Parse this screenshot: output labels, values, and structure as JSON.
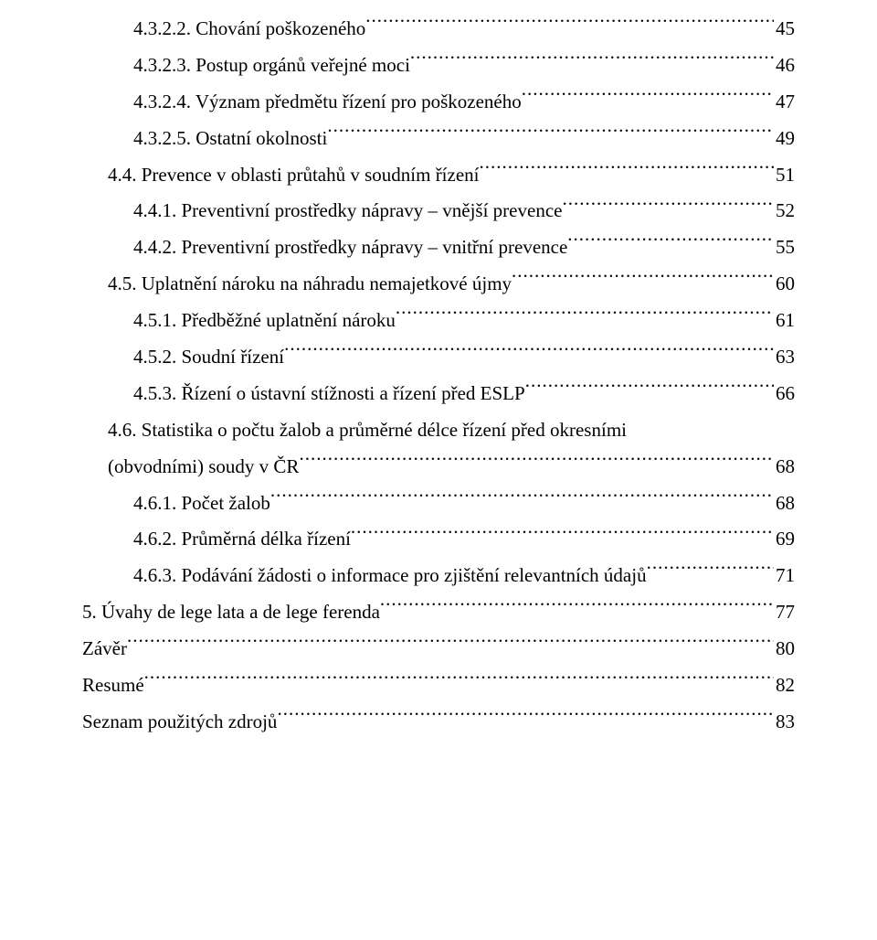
{
  "entries": [
    {
      "indent": 2,
      "label": "4.3.2.2. Chování poškozeného",
      "page": "45"
    },
    {
      "indent": 2,
      "label": "4.3.2.3. Postup orgánů veřejné moci",
      "page": "46"
    },
    {
      "indent": 2,
      "label": "4.3.2.4. Význam předmětu řízení pro poškozeného",
      "page": "47"
    },
    {
      "indent": 2,
      "label": "4.3.2.5. Ostatní okolnosti",
      "page": "49"
    },
    {
      "indent": 1,
      "label": "4.4. Prevence v oblasti průtahů v soudním řízení",
      "page": "51"
    },
    {
      "indent": 2,
      "label": "4.4.1. Preventivní prostředky nápravy – vnější prevence",
      "page": "52"
    },
    {
      "indent": 2,
      "label": "4.4.2. Preventivní prostředky nápravy – vnitřní prevence",
      "page": "55"
    },
    {
      "indent": 1,
      "label": "4.5. Uplatnění nároku na náhradu nemajetkové újmy",
      "page": "60"
    },
    {
      "indent": 2,
      "label": "4.5.1. Předběžné uplatnění nároku",
      "page": "61"
    },
    {
      "indent": 2,
      "label": "4.5.2. Soudní řízení",
      "page": "63"
    },
    {
      "indent": 2,
      "label": "4.5.3. Řízení o ústavní stížnosti a řízení před ESLP",
      "page": "66"
    },
    {
      "indent": 1,
      "wrap": true,
      "label_line1": "4.6. Statistika o počtu žalob a průměrné délce řízení před okresními",
      "label_line2": "(obvodními) soudy v ČR",
      "page": "68"
    },
    {
      "indent": 2,
      "label": "4.6.1. Počet žalob",
      "page": "68"
    },
    {
      "indent": 2,
      "label": "4.6.2. Průměrná délka řízení",
      "page": "69"
    },
    {
      "indent": 2,
      "label": "4.6.3. Podávání žádosti o informace pro zjištění relevantních údajů",
      "page": "71"
    },
    {
      "indent": 0,
      "label": "5. Úvahy de lege lata a de lege ferenda",
      "page": "77"
    },
    {
      "indent": 0,
      "label": "Závěr",
      "page": "80"
    },
    {
      "indent": 0,
      "label": "Resumé",
      "page": "82"
    },
    {
      "indent": 0,
      "label": "Seznam použitých zdrojů",
      "page": "83"
    }
  ]
}
